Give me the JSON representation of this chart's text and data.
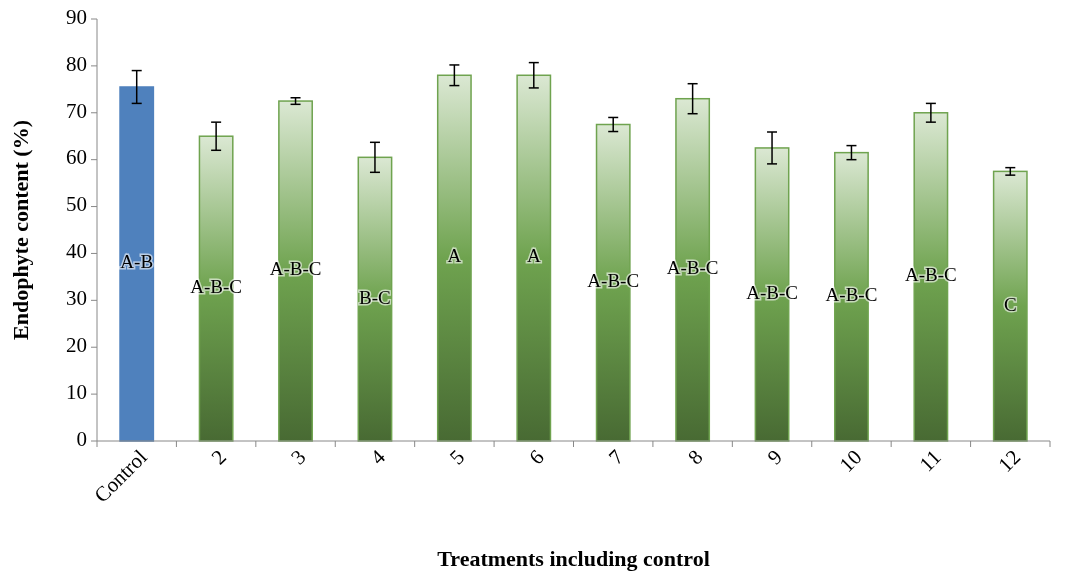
{
  "chart_data": {
    "type": "bar",
    "xlabel": "Treatments including control",
    "ylabel": "Endophyte content (%)",
    "categories": [
      "Control",
      "2",
      "3",
      "4",
      "5",
      "6",
      "7",
      "8",
      "9",
      "10",
      "11",
      "12"
    ],
    "values": [
      75.5,
      65,
      72.5,
      60.5,
      78,
      78,
      67.5,
      73,
      62.5,
      61.5,
      70,
      57.5
    ],
    "errors": [
      3.5,
      3,
      0.7,
      3.2,
      2.2,
      2.7,
      1.5,
      3.2,
      3.4,
      1.5,
      2,
      0.8
    ],
    "colors": [
      "#4f81bd",
      "#6fa34f",
      "#6fa34f",
      "#6fa34f",
      "#6fa34f",
      "#6fa34f",
      "#6fa34f",
      "#6fa34f",
      "#6fa34f",
      "#6fa34f",
      "#6fa34f",
      "#6fa34f"
    ],
    "ylim": [
      0,
      90
    ],
    "yticks": [
      0,
      10,
      20,
      30,
      40,
      50,
      60,
      70,
      80,
      90
    ],
    "grid": false,
    "value_labels": [
      "A-B",
      "A-B-C",
      "A-B-C",
      "B-C",
      "A",
      "A",
      "A-B-C",
      "A-B-C",
      "A-B-C",
      "A-B-C",
      "A-B-C",
      "C"
    ]
  }
}
